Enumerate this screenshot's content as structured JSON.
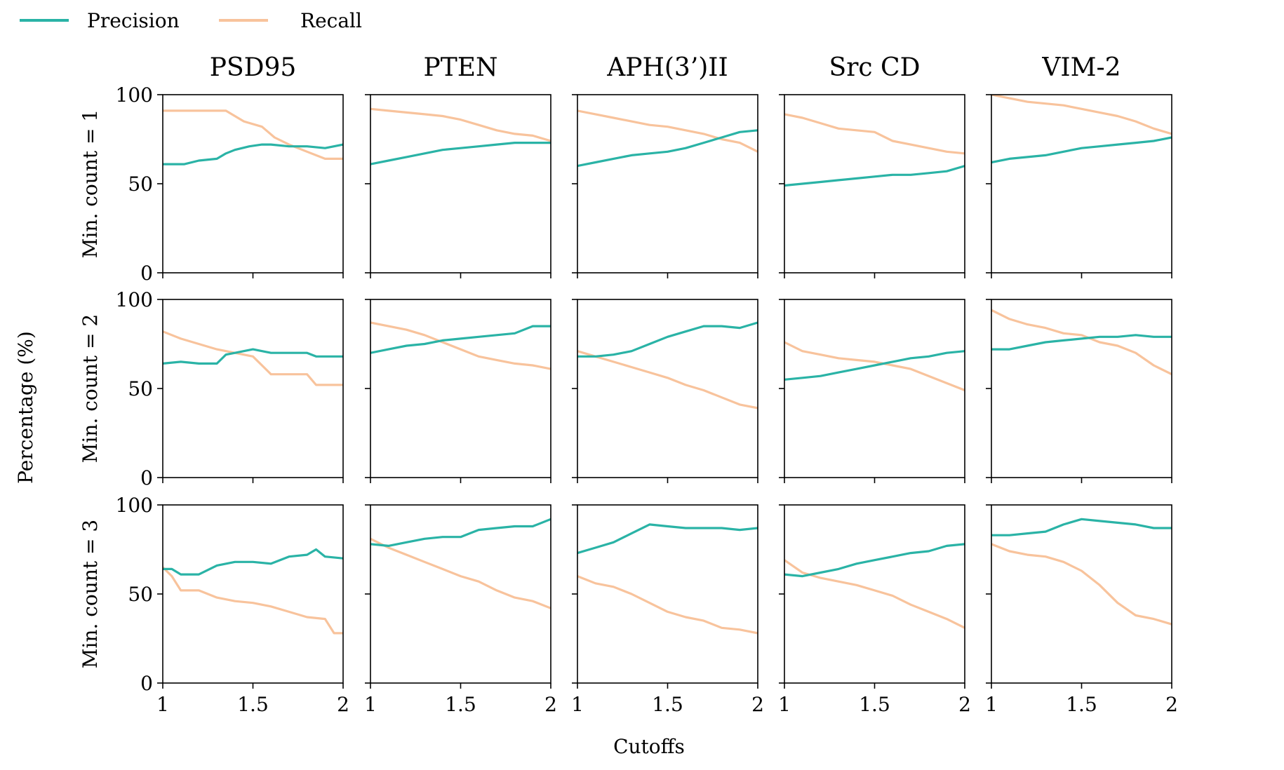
{
  "chart_data": {
    "type": "line",
    "xlabel": "Cutoffs",
    "ylabel": "Percentage (%)",
    "legend": {
      "placement": "top-left",
      "entries": [
        {
          "name": "Precision",
          "color": "#2ab3a6"
        },
        {
          "name": "Recall",
          "color": "#f8c39c"
        }
      ]
    },
    "columns": [
      "PSD95",
      "PTEN",
      "APH(3’)II",
      "Src CD",
      "VIM-2"
    ],
    "rows": [
      "Min. count = 1",
      "Min. count = 2",
      "Min. count = 3"
    ],
    "xlim": [
      1,
      2
    ],
    "ylim": [
      0,
      100
    ],
    "xticks": [
      "1",
      "1.5",
      "2"
    ],
    "yticks": [
      "0",
      "50",
      "100"
    ],
    "panels": [
      [
        {
          "precision": {
            "x": [
              1,
              1.12,
              1.2,
              1.3,
              1.35,
              1.4,
              1.48,
              1.55,
              1.6,
              1.7,
              1.8,
              1.9,
              2
            ],
            "y": [
              61,
              61,
              63,
              64,
              67,
              69,
              71,
              72,
              72,
              71,
              71,
              70,
              72
            ]
          },
          "recall": {
            "x": [
              1,
              1.35,
              1.45,
              1.55,
              1.62,
              1.7,
              1.8,
              1.9,
              2
            ],
            "y": [
              91,
              91,
              85,
              82,
              76,
              72,
              68,
              64,
              64
            ]
          }
        },
        {
          "precision": {
            "x": [
              1,
              1.1,
              1.2,
              1.3,
              1.4,
              1.5,
              1.6,
              1.7,
              1.8,
              1.9,
              2
            ],
            "y": [
              61,
              63,
              65,
              67,
              69,
              70,
              71,
              72,
              73,
              73,
              73
            ]
          },
          "recall": {
            "x": [
              1,
              1.1,
              1.2,
              1.3,
              1.4,
              1.5,
              1.6,
              1.7,
              1.8,
              1.9,
              2
            ],
            "y": [
              92,
              91,
              90,
              89,
              88,
              86,
              83,
              80,
              78,
              77,
              74
            ]
          }
        },
        {
          "precision": {
            "x": [
              1,
              1.1,
              1.2,
              1.3,
              1.4,
              1.5,
              1.6,
              1.7,
              1.8,
              1.9,
              2
            ],
            "y": [
              60,
              62,
              64,
              66,
              67,
              68,
              70,
              73,
              76,
              79,
              80
            ]
          },
          "recall": {
            "x": [
              1,
              1.1,
              1.2,
              1.3,
              1.4,
              1.5,
              1.6,
              1.7,
              1.8,
              1.9,
              2
            ],
            "y": [
              91,
              89,
              87,
              85,
              83,
              82,
              80,
              78,
              75,
              73,
              68
            ]
          }
        },
        {
          "precision": {
            "x": [
              1,
              1.1,
              1.2,
              1.3,
              1.4,
              1.5,
              1.6,
              1.7,
              1.8,
              1.9,
              2
            ],
            "y": [
              49,
              50,
              51,
              52,
              53,
              54,
              55,
              55,
              56,
              57,
              60
            ]
          },
          "recall": {
            "x": [
              1,
              1.1,
              1.2,
              1.3,
              1.4,
              1.5,
              1.6,
              1.7,
              1.8,
              1.9,
              2
            ],
            "y": [
              89,
              87,
              84,
              81,
              80,
              79,
              74,
              72,
              70,
              68,
              67
            ]
          }
        },
        {
          "precision": {
            "x": [
              1,
              1.1,
              1.2,
              1.3,
              1.4,
              1.5,
              1.6,
              1.7,
              1.8,
              1.9,
              2
            ],
            "y": [
              62,
              64,
              65,
              66,
              68,
              70,
              71,
              72,
              73,
              74,
              76
            ]
          },
          "recall": {
            "x": [
              1,
              1.1,
              1.2,
              1.3,
              1.4,
              1.5,
              1.6,
              1.7,
              1.8,
              1.9,
              2
            ],
            "y": [
              100,
              98,
              96,
              95,
              94,
              92,
              90,
              88,
              85,
              81,
              78
            ]
          }
        }
      ],
      [
        {
          "precision": {
            "x": [
              1,
              1.1,
              1.2,
              1.3,
              1.35,
              1.4,
              1.5,
              1.6,
              1.7,
              1.8,
              1.85,
              1.9,
              2
            ],
            "y": [
              64,
              65,
              64,
              64,
              69,
              70,
              72,
              70,
              70,
              70,
              68,
              68,
              68
            ]
          },
          "recall": {
            "x": [
              1,
              1.1,
              1.2,
              1.3,
              1.4,
              1.5,
              1.6,
              1.7,
              1.8,
              1.85,
              1.9,
              2
            ],
            "y": [
              82,
              78,
              75,
              72,
              70,
              68,
              58,
              58,
              58,
              52,
              52,
              52
            ]
          }
        },
        {
          "precision": {
            "x": [
              1,
              1.1,
              1.2,
              1.3,
              1.4,
              1.5,
              1.6,
              1.7,
              1.8,
              1.9,
              2
            ],
            "y": [
              70,
              72,
              74,
              75,
              77,
              78,
              79,
              80,
              81,
              85,
              85
            ]
          },
          "recall": {
            "x": [
              1,
              1.1,
              1.2,
              1.3,
              1.4,
              1.5,
              1.6,
              1.7,
              1.8,
              1.9,
              2
            ],
            "y": [
              87,
              85,
              83,
              80,
              76,
              72,
              68,
              66,
              64,
              63,
              61
            ]
          }
        },
        {
          "precision": {
            "x": [
              1,
              1.1,
              1.2,
              1.3,
              1.4,
              1.5,
              1.6,
              1.7,
              1.8,
              1.9,
              2
            ],
            "y": [
              68,
              68,
              69,
              71,
              75,
              79,
              82,
              85,
              85,
              84,
              87
            ]
          },
          "recall": {
            "x": [
              1,
              1.1,
              1.2,
              1.3,
              1.4,
              1.5,
              1.6,
              1.7,
              1.8,
              1.9,
              2
            ],
            "y": [
              71,
              68,
              65,
              62,
              59,
              56,
              52,
              49,
              45,
              41,
              39
            ]
          }
        },
        {
          "precision": {
            "x": [
              1,
              1.1,
              1.2,
              1.3,
              1.4,
              1.5,
              1.6,
              1.7,
              1.8,
              1.9,
              2
            ],
            "y": [
              55,
              56,
              57,
              59,
              61,
              63,
              65,
              67,
              68,
              70,
              71
            ]
          },
          "recall": {
            "x": [
              1,
              1.1,
              1.2,
              1.3,
              1.4,
              1.5,
              1.6,
              1.7,
              1.8,
              1.9,
              2
            ],
            "y": [
              76,
              71,
              69,
              67,
              66,
              65,
              63,
              61,
              57,
              53,
              49
            ]
          }
        },
        {
          "precision": {
            "x": [
              1,
              1.1,
              1.2,
              1.3,
              1.4,
              1.5,
              1.6,
              1.7,
              1.8,
              1.9,
              2
            ],
            "y": [
              72,
              72,
              74,
              76,
              77,
              78,
              79,
              79,
              80,
              79,
              79
            ]
          },
          "recall": {
            "x": [
              1,
              1.1,
              1.2,
              1.3,
              1.4,
              1.5,
              1.6,
              1.7,
              1.8,
              1.9,
              2
            ],
            "y": [
              94,
              89,
              86,
              84,
              81,
              80,
              76,
              74,
              70,
              63,
              58
            ]
          }
        }
      ],
      [
        {
          "precision": {
            "x": [
              1,
              1.05,
              1.1,
              1.2,
              1.3,
              1.4,
              1.5,
              1.6,
              1.7,
              1.8,
              1.85,
              1.9,
              2
            ],
            "y": [
              64,
              64,
              61,
              61,
              66,
              68,
              68,
              67,
              71,
              72,
              75,
              71,
              70
            ]
          },
          "recall": {
            "x": [
              1,
              1.05,
              1.1,
              1.2,
              1.3,
              1.4,
              1.5,
              1.6,
              1.7,
              1.8,
              1.9,
              1.95,
              2
            ],
            "y": [
              65,
              60,
              52,
              52,
              48,
              46,
              45,
              43,
              40,
              37,
              36,
              28,
              28
            ]
          }
        },
        {
          "precision": {
            "x": [
              1,
              1.1,
              1.2,
              1.3,
              1.4,
              1.5,
              1.6,
              1.7,
              1.8,
              1.9,
              2
            ],
            "y": [
              78,
              77,
              79,
              81,
              82,
              82,
              86,
              87,
              88,
              88,
              92
            ]
          },
          "recall": {
            "x": [
              1,
              1.1,
              1.2,
              1.3,
              1.4,
              1.5,
              1.6,
              1.7,
              1.8,
              1.9,
              2
            ],
            "y": [
              81,
              76,
              72,
              68,
              64,
              60,
              57,
              52,
              48,
              46,
              42
            ]
          }
        },
        {
          "precision": {
            "x": [
              1,
              1.1,
              1.2,
              1.3,
              1.4,
              1.5,
              1.6,
              1.7,
              1.8,
              1.9,
              2
            ],
            "y": [
              73,
              76,
              79,
              84,
              89,
              88,
              87,
              87,
              87,
              86,
              87
            ]
          },
          "recall": {
            "x": [
              1,
              1.1,
              1.2,
              1.3,
              1.4,
              1.5,
              1.6,
              1.7,
              1.8,
              1.9,
              2
            ],
            "y": [
              60,
              56,
              54,
              50,
              45,
              40,
              37,
              35,
              31,
              30,
              28
            ]
          }
        },
        {
          "precision": {
            "x": [
              1,
              1.1,
              1.2,
              1.3,
              1.4,
              1.5,
              1.6,
              1.7,
              1.8,
              1.9,
              2
            ],
            "y": [
              61,
              60,
              62,
              64,
              67,
              69,
              71,
              73,
              74,
              77,
              78
            ]
          },
          "recall": {
            "x": [
              1,
              1.1,
              1.2,
              1.3,
              1.4,
              1.5,
              1.6,
              1.7,
              1.8,
              1.9,
              2
            ],
            "y": [
              69,
              62,
              59,
              57,
              55,
              52,
              49,
              44,
              40,
              36,
              31
            ]
          }
        },
        {
          "precision": {
            "x": [
              1,
              1.1,
              1.2,
              1.3,
              1.4,
              1.5,
              1.6,
              1.7,
              1.8,
              1.9,
              2
            ],
            "y": [
              83,
              83,
              84,
              85,
              89,
              92,
              91,
              90,
              89,
              87,
              87
            ]
          },
          "recall": {
            "x": [
              1,
              1.1,
              1.2,
              1.3,
              1.4,
              1.5,
              1.6,
              1.7,
              1.8,
              1.9,
              2
            ],
            "y": [
              78,
              74,
              72,
              71,
              68,
              63,
              55,
              45,
              38,
              36,
              33
            ]
          }
        }
      ]
    ]
  }
}
